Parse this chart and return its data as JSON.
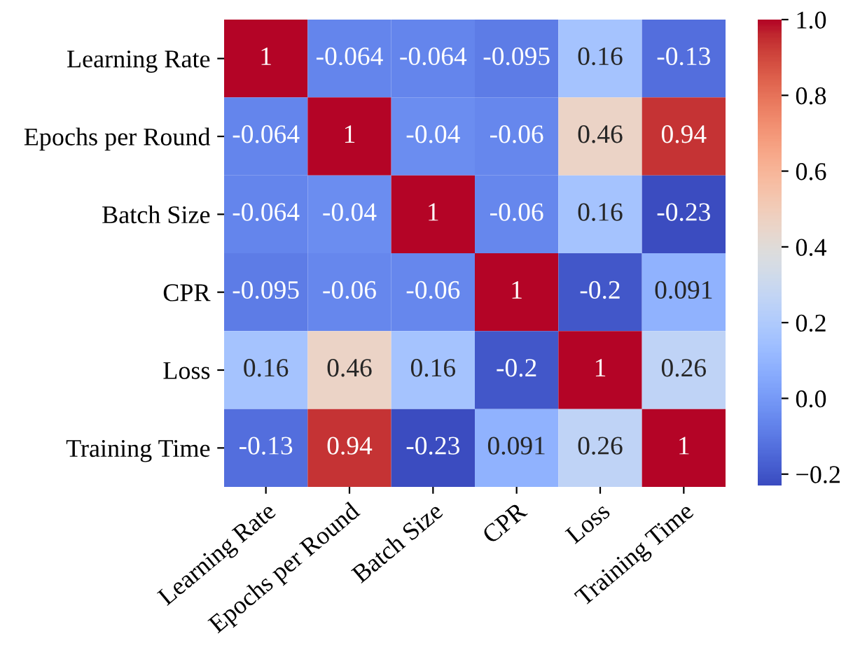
{
  "chart_data": {
    "type": "heatmap",
    "categories": [
      "Learning Rate",
      "Epochs per Round",
      "Batch Size",
      "CPR",
      "Loss",
      "Training Time"
    ],
    "y_categories": [
      "Learning Rate",
      "Epochs per Round",
      "Batch Size",
      "CPR",
      "Loss",
      "Training Time"
    ],
    "cells": [
      [
        1,
        -0.064,
        -0.064,
        -0.095,
        0.16,
        -0.13
      ],
      [
        -0.064,
        1,
        -0.04,
        -0.06,
        0.46,
        0.94
      ],
      [
        -0.064,
        -0.04,
        1,
        -0.06,
        0.16,
        -0.23
      ],
      [
        -0.095,
        -0.06,
        -0.06,
        1,
        -0.2,
        0.091
      ],
      [
        0.16,
        0.46,
        0.16,
        -0.2,
        1,
        0.26
      ],
      [
        -0.13,
        0.94,
        -0.23,
        0.091,
        0.26,
        1
      ]
    ],
    "clim": [
      -0.23,
      1.0
    ],
    "cticks": [
      {
        "value": -0.2,
        "label": "−0.2"
      },
      {
        "value": 0.0,
        "label": "0.0"
      },
      {
        "value": 0.2,
        "label": "0.2"
      },
      {
        "value": 0.4,
        "label": "0.4"
      },
      {
        "value": 0.6,
        "label": "0.6"
      },
      {
        "value": 0.8,
        "label": "0.8"
      },
      {
        "value": 1.0,
        "label": "1.0"
      }
    ],
    "data_labels": true
  }
}
